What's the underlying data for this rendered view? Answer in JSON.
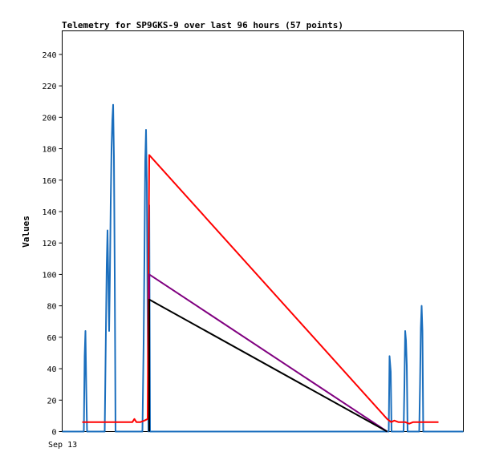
{
  "chart_data": {
    "type": "line",
    "title": "Telemetry for SP9GKS-9 over last 96 hours (57 points)",
    "xlabel": "",
    "ylabel": "Values",
    "x_tick_labels": [
      "Sep 13"
    ],
    "y_ticks": [
      0,
      20,
      40,
      60,
      80,
      100,
      120,
      140,
      160,
      180,
      200,
      220,
      240
    ],
    "ylim": [
      0,
      255
    ],
    "xlim": [
      0,
      100
    ],
    "grid": false,
    "colors": {
      "blue": "#1a6ebd",
      "red": "#ff0000",
      "purple": "#800080",
      "black": "#000000"
    },
    "series": [
      {
        "color": "blue",
        "points": [
          [
            0,
            0
          ],
          [
            5.4,
            0
          ],
          [
            5.6,
            48
          ],
          [
            5.8,
            64
          ],
          [
            6.0,
            28
          ],
          [
            6.2,
            0
          ],
          [
            10.6,
            0
          ],
          [
            10.9,
            64
          ],
          [
            11.1,
            106
          ],
          [
            11.3,
            128
          ],
          [
            11.5,
            98
          ],
          [
            11.7,
            64
          ],
          [
            11.9,
            100
          ],
          [
            12.1,
            146
          ],
          [
            12.3,
            180
          ],
          [
            12.5,
            198
          ],
          [
            12.7,
            208
          ],
          [
            12.9,
            175
          ],
          [
            13.1,
            100
          ],
          [
            13.3,
            0
          ],
          [
            20.0,
            0
          ],
          [
            20.3,
            56
          ],
          [
            20.5,
            110
          ],
          [
            20.7,
            172
          ],
          [
            20.9,
            192
          ],
          [
            21.1,
            158
          ],
          [
            21.3,
            72
          ],
          [
            21.5,
            0
          ],
          [
            21.7,
            144
          ],
          [
            21.9,
            0
          ],
          [
            81.4,
            0
          ],
          [
            81.6,
            48
          ],
          [
            81.9,
            38
          ],
          [
            82.1,
            0
          ],
          [
            85.1,
            0
          ],
          [
            85.3,
            28
          ],
          [
            85.5,
            64
          ],
          [
            85.7,
            58
          ],
          [
            85.9,
            42
          ],
          [
            86.1,
            0
          ],
          [
            89.0,
            0
          ],
          [
            89.2,
            30
          ],
          [
            89.4,
            66
          ],
          [
            89.6,
            80
          ],
          [
            89.8,
            64
          ],
          [
            90.0,
            0
          ],
          [
            100,
            0
          ]
        ]
      },
      {
        "color": "red",
        "points": [
          [
            5.0,
            6
          ],
          [
            17.5,
            6
          ],
          [
            18.0,
            8
          ],
          [
            18.5,
            6
          ],
          [
            19.5,
            6
          ],
          [
            20.5,
            7
          ],
          [
            21.3,
            8
          ],
          [
            21.7,
            176
          ],
          [
            81.0,
            8
          ],
          [
            82.0,
            6
          ],
          [
            82.8,
            7
          ],
          [
            83.8,
            6
          ],
          [
            85.5,
            6
          ],
          [
            86.5,
            5
          ],
          [
            87.5,
            6
          ],
          [
            93.8,
            6
          ]
        ]
      },
      {
        "color": "purple",
        "points": [
          [
            21.7,
            0
          ],
          [
            21.7,
            100
          ],
          [
            81.0,
            0
          ]
        ]
      },
      {
        "color": "black",
        "points": [
          [
            21.7,
            0
          ],
          [
            21.7,
            84
          ],
          [
            81.0,
            0
          ]
        ]
      }
    ]
  }
}
